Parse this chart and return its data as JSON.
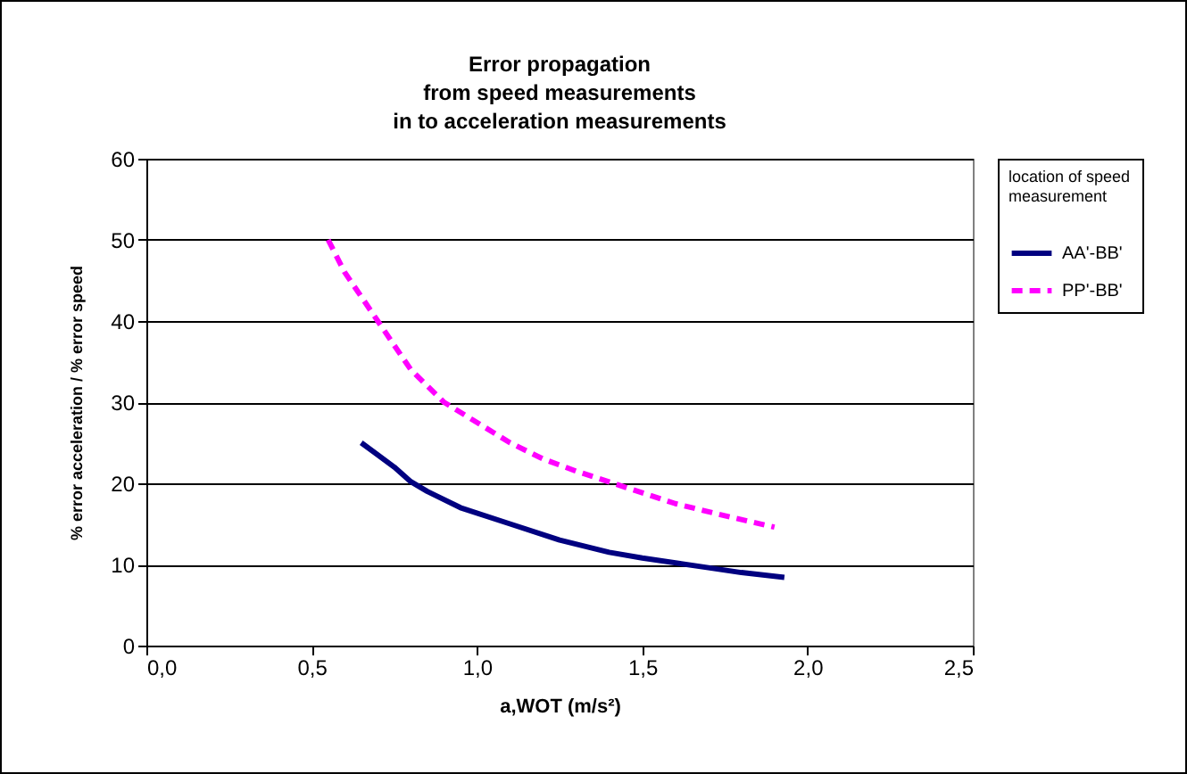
{
  "chart_data": {
    "type": "line",
    "title": "Error propagation\nfrom speed measurements\nin to acceleration measurements",
    "xlabel": "a,WOT (m/s²)",
    "ylabel": "% error acceleration / % error speed",
    "legend_title": "location of speed\nmeasurement",
    "legend": "right",
    "grid": "y",
    "xlim": [
      0,
      2.5
    ],
    "xticks": [
      {
        "value": 0,
        "label": "0,0"
      },
      {
        "value": 0.5,
        "label": "0,5"
      },
      {
        "value": 1,
        "label": "1,0"
      },
      {
        "value": 1.5,
        "label": "1,5"
      },
      {
        "value": 2,
        "label": "2,0"
      },
      {
        "value": 2.5,
        "label": "2,5"
      }
    ],
    "ylim": [
      0,
      60
    ],
    "yticks": [
      0,
      10,
      20,
      30,
      40,
      50,
      60
    ],
    "series": [
      {
        "name": "AA'-BB'",
        "color": "#000080",
        "line_style": "solid",
        "x": [
          0.65,
          0.75,
          0.8,
          0.85,
          0.95,
          1.1,
          1.25,
          1.4,
          1.5,
          1.7,
          1.8,
          1.93
        ],
        "values": [
          25,
          22,
          20.2,
          19,
          17,
          15,
          13,
          11.5,
          10.8,
          9.6,
          9.0,
          8.4
        ]
      },
      {
        "name": "PP'-BB'",
        "color": "#ff00ff",
        "line_style": "dashed",
        "x": [
          0.55,
          0.6,
          0.7,
          0.8,
          0.9,
          1.0,
          1.1,
          1.2,
          1.3,
          1.45,
          1.6,
          1.75,
          1.9
        ],
        "values": [
          50,
          46,
          40,
          34,
          30,
          27.5,
          25,
          23,
          21.5,
          19.5,
          17.5,
          16,
          14.6
        ]
      }
    ]
  }
}
